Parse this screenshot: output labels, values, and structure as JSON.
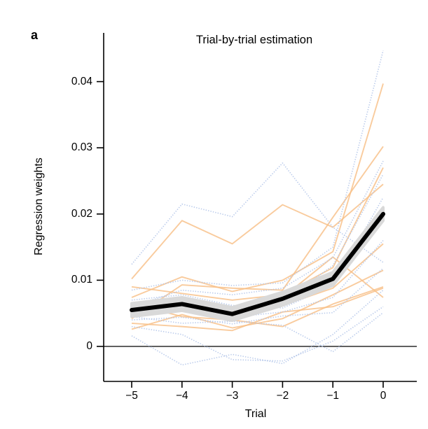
{
  "panel_label": "a",
  "colors": {
    "orange_line": "#F8BE85",
    "blue_line": "#B3C5E9",
    "mean_line": "#000000",
    "error_band": "#D9D9D9",
    "axis": "#000000"
  },
  "chart_data": {
    "type": "line",
    "title": "Trial-by-trial estimation",
    "xlabel": "Trial",
    "ylabel": "Regression weights",
    "x": [
      -5,
      -4,
      -3,
      -2,
      -1,
      0
    ],
    "xtick_labels": [
      "−5",
      "−4",
      "−3",
      "−2",
      "−1",
      "0"
    ],
    "yticks": [
      0,
      0.01,
      0.02,
      0.03,
      0.04
    ],
    "ytick_labels": [
      "0",
      "0.01",
      "0.02",
      "0.03",
      "0.04"
    ],
    "xlim": [
      -5.56,
      0.67
    ],
    "ylim": [
      -0.0053,
      0.0474
    ],
    "grid": false,
    "legend": "none",
    "zero_line": 0,
    "mean_series": {
      "name": "group-mean",
      "values": [
        0.0055,
        0.0064,
        0.0049,
        0.0072,
        0.0102,
        0.02
      ],
      "band_halfwidth": 0.001
    },
    "series": [
      {
        "name": "participant-01",
        "color": "orange_line",
        "style": "solid",
        "values": [
          0.0102,
          0.019,
          0.0155,
          0.0214,
          0.018,
          0.0245
        ]
      },
      {
        "name": "participant-02",
        "color": "orange_line",
        "style": "solid",
        "values": [
          0.0074,
          0.0105,
          0.0083,
          0.01,
          0.0143,
          0.0397
        ]
      },
      {
        "name": "participant-03",
        "color": "orange_line",
        "style": "solid",
        "values": [
          0.0042,
          0.0093,
          0.0088,
          0.0085,
          0.0195,
          0.0302
        ]
      },
      {
        "name": "participant-04",
        "color": "orange_line",
        "style": "solid",
        "values": [
          0.009,
          0.008,
          0.007,
          0.0078,
          0.0119,
          0.027
        ]
      },
      {
        "name": "participant-05",
        "color": "orange_line",
        "style": "solid",
        "values": [
          0.0055,
          0.0068,
          0.005,
          0.0062,
          0.0088,
          0.0155
        ]
      },
      {
        "name": "participant-06",
        "color": "orange_line",
        "style": "solid",
        "values": [
          0.0026,
          0.0048,
          0.0028,
          0.0042,
          0.0078,
          0.0115
        ]
      },
      {
        "name": "participant-07",
        "color": "orange_line",
        "style": "solid",
        "values": [
          0.0065,
          0.0045,
          0.004,
          0.003,
          0.0064,
          0.009
        ]
      },
      {
        "name": "participant-08",
        "color": "orange_line",
        "style": "solid",
        "values": [
          0.0048,
          0.0062,
          0.0056,
          0.0074,
          0.0135,
          0.0074
        ]
      },
      {
        "name": "participant-09",
        "color": "orange_line",
        "style": "solid",
        "values": [
          0.0035,
          0.003,
          0.0024,
          0.0052,
          0.006,
          0.0088
        ]
      },
      {
        "name": "participant-10",
        "color": "blue_line",
        "style": "dotted",
        "values": [
          0.0124,
          0.0215,
          0.0196,
          0.0277,
          0.018,
          0.0127
        ]
      },
      {
        "name": "participant-11",
        "color": "blue_line",
        "style": "dotted",
        "values": [
          0.0085,
          0.01,
          0.0092,
          0.0096,
          0.015,
          0.0447
        ]
      },
      {
        "name": "participant-12",
        "color": "blue_line",
        "style": "dotted",
        "values": [
          0.006,
          0.0085,
          0.0078,
          0.0088,
          0.0134,
          0.028
        ]
      },
      {
        "name": "participant-13",
        "color": "blue_line",
        "style": "dotted",
        "values": [
          0.0052,
          0.0075,
          0.0058,
          0.0068,
          0.0122,
          0.026
        ]
      },
      {
        "name": "participant-14",
        "color": "blue_line",
        "style": "dotted",
        "values": [
          0.007,
          0.0078,
          0.0062,
          0.0058,
          0.0092,
          0.0225
        ]
      },
      {
        "name": "participant-15",
        "color": "blue_line",
        "style": "dotted",
        "values": [
          0.0055,
          0.0058,
          0.0044,
          0.0052,
          0.0074,
          0.016
        ]
      },
      {
        "name": "participant-16",
        "color": "blue_line",
        "style": "dotted",
        "values": [
          0.004,
          0.0044,
          0.0034,
          0.0046,
          0.0051,
          0.0118
        ]
      },
      {
        "name": "participant-17",
        "color": "blue_line",
        "style": "dotted",
        "values": [
          0.0016,
          -0.0028,
          -0.0012,
          -0.0026,
          0.0018,
          0.0085
        ]
      },
      {
        "name": "participant-18",
        "color": "blue_line",
        "style": "dotted",
        "values": [
          0.003,
          0.0018,
          -0.002,
          -0.0022,
          0.0008,
          0.006
        ]
      },
      {
        "name": "participant-19",
        "color": "blue_line",
        "style": "dotted",
        "values": [
          0.0045,
          0.0035,
          0.0038,
          0.0032,
          -0.0008,
          0.0051
        ]
      }
    ]
  }
}
